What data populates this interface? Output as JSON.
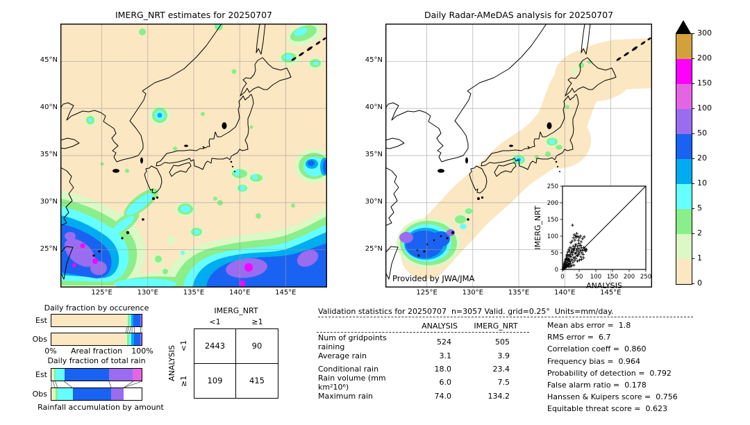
{
  "chart_data": [
    {
      "type": "map",
      "title": "IMERG_NRT estimates for 20250707",
      "region": "120.5-149.5E, 21-49N (Japan area)",
      "units": "mm/day",
      "lat_ticks": [
        "45°N",
        "40°N",
        "35°N",
        "30°N",
        "25°N"
      ],
      "lon_ticks": [
        "125°E",
        "130°E",
        "135°E",
        "140°E",
        "145°E"
      ],
      "notes": "Heavy rain (50-200 mm/day) southwest near Taiwan/Okinawa and along 21-24N band east of 133E with 150-200 magenta cores; scattered 1-20 mm/day patches elsewhere"
    },
    {
      "type": "map",
      "title": "Daily Radar-AMeDAS analysis for 20250707",
      "annotation": "Provided by JWA/JMA",
      "region": "radar coverage swath along Japanese archipelago only",
      "units": "mm/day",
      "lat_ticks": [
        "45°N",
        "40°N",
        "35°N",
        "30°N",
        "25°N"
      ],
      "lon_ticks": [
        "125°E",
        "130°E",
        "135°E",
        "140°E",
        "145°E"
      ],
      "notes": "Rain system near Okinawa up to 50-150 mm/day; light 1-20 mm/day spots over central Honshu"
    },
    {
      "type": "colorbar",
      "units": "mm/day",
      "levels_low_to_high": [
        0,
        1,
        2,
        5,
        10,
        20,
        50,
        100,
        150,
        200,
        300
      ],
      "tick_labels": [
        "300",
        "200",
        "150",
        "100",
        "50",
        "20",
        "10",
        "5",
        "2",
        "1",
        "0"
      ],
      "colors_top_to_bottom": [
        "#d2a13c",
        "#ff00ff",
        "#e465e4",
        "#9a6cf0",
        "#1a63f2",
        "#00acf0",
        "#66ffff",
        "#8aee8a",
        "#dcf8c4",
        "#fbe7c2"
      ],
      "extend": "max-triangle-black"
    },
    {
      "type": "bar",
      "stacked": true,
      "title": "Daily fraction by occurence",
      "categories": [
        "Est",
        "Obs"
      ],
      "axis": {
        "left": "0%",
        "center": "Areal fraction",
        "right": "100%"
      },
      "xlim": [
        0,
        100
      ],
      "series": [
        {
          "name": "0-1 mm/day",
          "color": "#fbe7c2",
          "values": [
            83.3,
            81.8
          ]
        },
        {
          "name": "1-2 mm/day",
          "color": "#dcf8c4",
          "values": [
            1.7,
            1.9
          ]
        },
        {
          "name": "2-5 mm/day",
          "color": "#8aee8a",
          "values": [
            2.3,
            2.3
          ]
        },
        {
          "name": "5-10 mm/day",
          "color": "#66ffff",
          "values": [
            1.5,
            2.6
          ]
        },
        {
          "name": "10-20 mm/day",
          "color": "#00acf0",
          "values": [
            2.2,
            2.8
          ]
        },
        {
          "name": "20-50 mm/day",
          "color": "#1a63f2",
          "values": [
            7.2,
            6.8
          ]
        },
        {
          "name": "50-100 mm/day",
          "color": "#9a6cf0",
          "values": [
            1.8,
            1.8
          ]
        }
      ]
    },
    {
      "type": "bar",
      "stacked": true,
      "title": "Daily fraction of total rain",
      "caption": "Rainfall accumulation by amount",
      "categories": [
        "Est",
        "Obs"
      ],
      "xlim": [
        0,
        100
      ],
      "series": [
        {
          "name": "0-1 mm/day",
          "color": "#fbe7c2",
          "values": [
            0.8,
            0.8
          ]
        },
        {
          "name": "1-2 mm/day",
          "color": "#dcf8c4",
          "values": [
            2.0,
            3.5
          ]
        },
        {
          "name": "2-5 mm/day",
          "color": "#8aee8a",
          "values": [
            2.2,
            3.0
          ]
        },
        {
          "name": "5-20 mm/day",
          "color": "#66ffff",
          "values": [
            9.5,
            16.2
          ]
        },
        {
          "name": "20-50 mm/day",
          "color": "#1a63f2",
          "values": [
            49.0,
            42.5
          ]
        },
        {
          "name": "50-100 mm/day",
          "color": "#9a6cf0",
          "values": [
            26.5,
            14.0
          ]
        },
        {
          "name": "100-150 mm/day",
          "color": "#e465e4",
          "values": [
            10.0,
            0.0
          ]
        }
      ]
    },
    {
      "type": "table",
      "name": "contingency",
      "col_group": "IMERG_NRT",
      "row_group": "ANALYSIS",
      "col_labels": [
        "<1",
        "≥1"
      ],
      "row_labels": [
        "<1",
        "≥1"
      ],
      "values": [
        [
          "2443",
          "90"
        ],
        [
          "109",
          "415"
        ]
      ]
    },
    {
      "type": "table",
      "name": "validation-statistics",
      "title": "Validation statistics for 20250707  n=3057 Valid. grid=0.25°  Units=mm/day.",
      "columns": [
        "ANALYSIS",
        "IMERG_NRT"
      ],
      "rows": [
        {
          "label": "Num of gridpoints raining",
          "analysis": "524",
          "imerg": "505"
        },
        {
          "label": "Average rain",
          "analysis": "3.1",
          "imerg": "3.9"
        },
        {
          "label": "Conditional rain",
          "analysis": "18.0",
          "imerg": "23.4"
        },
        {
          "label": "Rain volume (mm km²10⁶)",
          "analysis": "6.0",
          "imerg": "7.5"
        },
        {
          "label": "Maximum rain",
          "analysis": "74.0",
          "imerg": "134.2"
        }
      ],
      "metrics": [
        {
          "label": "Mean abs error",
          "value": "1.8"
        },
        {
          "label": "RMS error",
          "value": "6.7"
        },
        {
          "label": "Correlation coeff",
          "value": "0.860"
        },
        {
          "label": "Frequency bias",
          "value": "0.964"
        },
        {
          "label": "Probability of detection",
          "value": "0.792"
        },
        {
          "label": "False alarm ratio",
          "value": "0.178"
        },
        {
          "label": "Hanssen & Kuipers score",
          "value": "0.756"
        },
        {
          "label": "Equitable threat score",
          "value": "0.623"
        }
      ]
    },
    {
      "type": "scatter",
      "name": "inset-scatter",
      "xlabel": "ANALYSIS",
      "ylabel": "IMERG_NRT",
      "xlim": [
        0,
        250
      ],
      "ylim": [
        0,
        250
      ],
      "tick_values": [
        0,
        50,
        100,
        150,
        200,
        250
      ],
      "diagonal": true,
      "marker": "+",
      "points": [
        [
          2,
          1
        ],
        [
          3,
          4
        ],
        [
          3,
          8
        ],
        [
          4,
          2
        ],
        [
          4,
          15
        ],
        [
          5,
          6
        ],
        [
          5,
          12
        ],
        [
          6,
          3
        ],
        [
          6,
          18
        ],
        [
          7,
          9
        ],
        [
          7,
          22
        ],
        [
          8,
          5
        ],
        [
          8,
          15
        ],
        [
          8,
          25
        ],
        [
          9,
          30
        ],
        [
          10,
          11
        ],
        [
          10,
          22
        ],
        [
          11,
          7
        ],
        [
          11,
          33
        ],
        [
          12,
          16
        ],
        [
          12,
          40
        ],
        [
          13,
          9
        ],
        [
          13,
          28
        ],
        [
          14,
          45
        ],
        [
          15,
          20
        ],
        [
          15,
          35
        ],
        [
          16,
          12
        ],
        [
          16,
          52
        ],
        [
          17,
          10
        ],
        [
          17,
          26
        ],
        [
          18,
          30
        ],
        [
          18,
          42
        ],
        [
          19,
          15
        ],
        [
          19,
          60
        ],
        [
          20,
          8
        ],
        [
          20,
          31
        ],
        [
          21,
          14
        ],
        [
          21,
          55
        ],
        [
          22,
          24
        ],
        [
          22,
          40
        ],
        [
          23,
          45
        ],
        [
          23,
          66
        ],
        [
          24,
          18
        ],
        [
          25,
          9
        ],
        [
          25,
          38
        ],
        [
          25,
          80
        ],
        [
          26,
          50
        ],
        [
          27,
          29
        ],
        [
          27,
          55
        ],
        [
          28,
          12
        ],
        [
          28,
          62
        ],
        [
          29,
          85
        ],
        [
          30,
          44
        ],
        [
          30,
          133
        ],
        [
          31,
          22
        ],
        [
          31,
          52
        ],
        [
          32,
          70
        ],
        [
          33,
          60
        ],
        [
          33,
          95
        ],
        [
          34,
          13
        ],
        [
          34,
          36
        ],
        [
          35,
          58
        ],
        [
          35,
          104
        ],
        [
          36,
          27
        ],
        [
          36,
          64
        ],
        [
          37,
          88
        ],
        [
          38,
          48
        ],
        [
          38,
          70
        ],
        [
          39,
          101
        ],
        [
          40,
          33
        ],
        [
          40,
          75
        ],
        [
          41,
          50
        ],
        [
          41,
          96
        ],
        [
          42,
          58
        ],
        [
          43,
          108
        ],
        [
          44,
          41
        ],
        [
          44,
          62
        ],
        [
          45,
          25
        ],
        [
          45,
          70
        ],
        [
          46,
          42
        ],
        [
          46,
          99
        ],
        [
          47,
          54
        ],
        [
          48,
          87
        ],
        [
          49,
          63
        ],
        [
          49,
          78
        ],
        [
          50,
          46
        ],
        [
          50,
          95
        ],
        [
          51,
          28
        ],
        [
          52,
          72
        ],
        [
          53,
          58
        ],
        [
          54,
          100
        ],
        [
          55,
          38
        ],
        [
          55,
          72
        ],
        [
          56,
          83
        ],
        [
          57,
          30
        ],
        [
          57,
          65
        ],
        [
          58,
          50
        ],
        [
          60,
          92
        ],
        [
          61,
          57
        ],
        [
          62,
          45
        ],
        [
          63,
          35
        ],
        [
          64,
          66
        ],
        [
          65,
          98
        ],
        [
          66,
          58
        ],
        [
          68,
          62
        ],
        [
          70,
          55
        ],
        [
          72,
          60
        ]
      ]
    }
  ]
}
